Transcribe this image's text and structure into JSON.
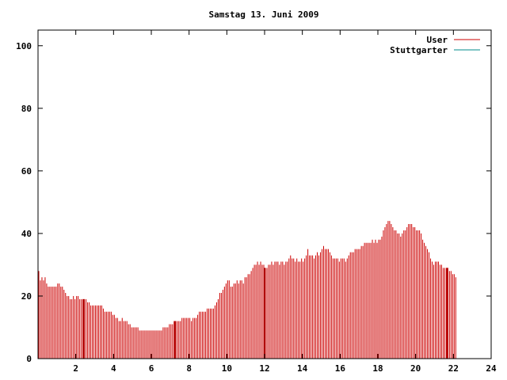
{
  "chart_data": {
    "type": "bar",
    "title": "Samstag 13. Juni 2009",
    "xlabel": "",
    "ylabel": "",
    "xlim": [
      0,
      24
    ],
    "ylim": [
      0,
      105
    ],
    "x_ticks": [
      2,
      4,
      6,
      8,
      10,
      12,
      14,
      16,
      18,
      20,
      22,
      24
    ],
    "y_ticks": [
      0,
      20,
      40,
      60,
      80,
      100
    ],
    "grid": false,
    "legend_position": "top-right",
    "series": [
      {
        "name": "User",
        "color": "#cc0000",
        "samples_per_hour": 12,
        "values": [
          28,
          25,
          26,
          25,
          26,
          24,
          23,
          23,
          23,
          23,
          23,
          23,
          24,
          24,
          23,
          23,
          22,
          21,
          20,
          20,
          19,
          19,
          20,
          19,
          20,
          20,
          19,
          19,
          19,
          19,
          19,
          18,
          18,
          17,
          17,
          17,
          17,
          17,
          17,
          17,
          17,
          16,
          15,
          15,
          15,
          15,
          15,
          14,
          14,
          13,
          13,
          12,
          12,
          13,
          12,
          12,
          12,
          11,
          11,
          10,
          10,
          10,
          10,
          10,
          9,
          9,
          9,
          9,
          9,
          9,
          9,
          9,
          9,
          9,
          9,
          9,
          9,
          9,
          9,
          10,
          10,
          10,
          10,
          11,
          11,
          11,
          12,
          12,
          12,
          12,
          12,
          13,
          13,
          13,
          13,
          13,
          13,
          12,
          13,
          13,
          13,
          14,
          15,
          15,
          15,
          15,
          15,
          16,
          16,
          16,
          16,
          16,
          17,
          18,
          19,
          21,
          21,
          22,
          23,
          24,
          25,
          25,
          23,
          23,
          24,
          24,
          25,
          24,
          25,
          25,
          24,
          26,
          26,
          27,
          27,
          28,
          29,
          30,
          30,
          31,
          30,
          31,
          30,
          30,
          29,
          29,
          30,
          30,
          31,
          30,
          31,
          31,
          31,
          30,
          31,
          31,
          30,
          31,
          31,
          32,
          33,
          32,
          32,
          31,
          32,
          31,
          31,
          32,
          31,
          32,
          33,
          35,
          33,
          33,
          33,
          32,
          33,
          34,
          33,
          34,
          35,
          36,
          35,
          35,
          35,
          34,
          33,
          32,
          32,
          32,
          32,
          31,
          32,
          32,
          32,
          31,
          32,
          33,
          34,
          34,
          34,
          35,
          35,
          35,
          35,
          36,
          36,
          37,
          37,
          37,
          37,
          37,
          38,
          37,
          38,
          37,
          38,
          38,
          39,
          41,
          42,
          43,
          44,
          44,
          43,
          42,
          41,
          41,
          40,
          40,
          39,
          40,
          41,
          41,
          42,
          43,
          43,
          43,
          42,
          42,
          41,
          41,
          41,
          40,
          38,
          37,
          36,
          35,
          34,
          32,
          31,
          30,
          31,
          31,
          31,
          30,
          30,
          29,
          29,
          29,
          29,
          28,
          28,
          27,
          27,
          26
        ]
      },
      {
        "name": "Stuttgarter",
        "color": "#008b8b",
        "values": []
      }
    ],
    "highlight_x": [
      2.42,
      7.25,
      12.0,
      21.67
    ]
  }
}
